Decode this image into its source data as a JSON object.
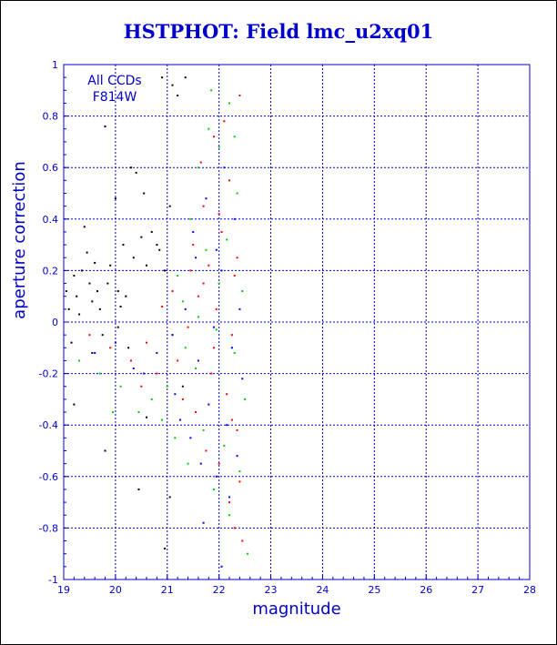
{
  "chart_data": {
    "type": "scatter",
    "title": "HSTPHOT: Field lmc_u2xq01",
    "xlabel": "magnitude",
    "ylabel": "aperture correction",
    "xlim": [
      19,
      28
    ],
    "ylim": [
      -1,
      1
    ],
    "x_ticks": [
      "19",
      "20",
      "21",
      "22",
      "23",
      "24",
      "25",
      "26",
      "27",
      "28"
    ],
    "y_ticks": [
      "1",
      "0.8",
      "0.6",
      "0.4",
      "0.2",
      "0",
      "-0.2",
      "-0.4",
      "-0.6",
      "-0.8",
      "-1"
    ],
    "grid": true,
    "annotations": [
      "All CCDs",
      "F814W"
    ],
    "colors": {
      "axis": "#0000cc",
      "grid": "#0000cc",
      "title": "#0000cc",
      "series": [
        "#000000",
        "#ff0000",
        "#00cc00",
        "#0000ff"
      ]
    },
    "series": [
      {
        "color": "#000000",
        "points": [
          [
            19.05,
            0.12
          ],
          [
            19.1,
            0.05
          ],
          [
            19.15,
            -0.08
          ],
          [
            19.2,
            0.18
          ],
          [
            19.25,
            0.1
          ],
          [
            19.3,
            0.03
          ],
          [
            19.35,
            0.2
          ],
          [
            19.4,
            0.37
          ],
          [
            19.45,
            0.27
          ],
          [
            19.5,
            0.15
          ],
          [
            19.55,
            0.08
          ],
          [
            19.6,
            0.23
          ],
          [
            19.65,
            0.12
          ],
          [
            19.7,
            0.05
          ],
          [
            19.8,
            0.76
          ],
          [
            19.85,
            0.15
          ],
          [
            19.9,
            0.22
          ],
          [
            20.0,
            0.48
          ],
          [
            20.05,
            0.12
          ],
          [
            20.1,
            0.06
          ],
          [
            20.15,
            0.3
          ],
          [
            20.2,
            0.1
          ],
          [
            20.3,
            0.6
          ],
          [
            20.35,
            0.25
          ],
          [
            20.4,
            0.58
          ],
          [
            20.5,
            0.33
          ],
          [
            20.55,
            0.5
          ],
          [
            20.6,
            0.22
          ],
          [
            20.7,
            0.35
          ],
          [
            20.8,
            0.3
          ],
          [
            20.85,
            0.28
          ],
          [
            20.9,
            0.95
          ],
          [
            20.95,
            0.2
          ],
          [
            21.05,
            0.45
          ],
          [
            21.1,
            0.92
          ],
          [
            21.2,
            0.88
          ],
          [
            21.35,
            0.95
          ],
          [
            19.2,
            -0.32
          ],
          [
            19.8,
            -0.5
          ],
          [
            20.45,
            -0.65
          ],
          [
            20.6,
            -0.37
          ],
          [
            20.95,
            -0.88
          ],
          [
            21.05,
            -0.68
          ],
          [
            21.1,
            -0.05
          ],
          [
            21.3,
            -0.25
          ],
          [
            19.55,
            -0.12
          ],
          [
            19.75,
            -0.05
          ],
          [
            20.05,
            -0.02
          ],
          [
            20.25,
            -0.1
          ]
        ]
      },
      {
        "color": "#ff0000",
        "points": [
          [
            21.9,
            0.72
          ],
          [
            22.4,
            0.88
          ],
          [
            22.1,
            0.78
          ],
          [
            21.7,
            0.45
          ],
          [
            22.2,
            0.55
          ],
          [
            21.5,
            0.3
          ],
          [
            22.05,
            0.35
          ],
          [
            21.8,
            0.22
          ],
          [
            22.3,
            0.18
          ],
          [
            21.6,
            0.1
          ],
          [
            21.95,
            0.05
          ],
          [
            22.25,
            -0.05
          ],
          [
            21.4,
            -0.02
          ],
          [
            20.9,
            0.06
          ],
          [
            20.6,
            -0.08
          ],
          [
            21.2,
            -0.15
          ],
          [
            21.85,
            -0.2
          ],
          [
            22.15,
            -0.28
          ],
          [
            21.55,
            -0.35
          ],
          [
            22.35,
            -0.42
          ],
          [
            21.75,
            -0.5
          ],
          [
            22.0,
            -0.55
          ],
          [
            22.4,
            -0.62
          ],
          [
            22.2,
            -0.7
          ],
          [
            22.3,
            -0.8
          ],
          [
            22.45,
            -0.85
          ],
          [
            19.5,
            -0.05
          ],
          [
            19.9,
            -0.1
          ],
          [
            20.3,
            -0.15
          ],
          [
            20.8,
            -0.2
          ],
          [
            21.45,
            0.2
          ],
          [
            22.0,
            0.42
          ],
          [
            21.65,
            0.62
          ],
          [
            22.35,
            0.25
          ],
          [
            21.3,
            -0.3
          ],
          [
            21.9,
            -0.1
          ],
          [
            22.25,
            -0.38
          ],
          [
            20.5,
            -0.25
          ],
          [
            21.1,
            0.12
          ],
          [
            21.7,
            0.15
          ]
        ]
      },
      {
        "color": "#00cc00",
        "points": [
          [
            21.85,
            0.9
          ],
          [
            22.2,
            0.85
          ],
          [
            22.0,
            0.68
          ],
          [
            21.6,
            0.6
          ],
          [
            22.35,
            0.5
          ],
          [
            21.45,
            0.4
          ],
          [
            22.15,
            0.32
          ],
          [
            21.75,
            0.28
          ],
          [
            22.45,
            0.12
          ],
          [
            21.3,
            0.08
          ],
          [
            21.95,
            -0.03
          ],
          [
            22.3,
            -0.12
          ],
          [
            21.55,
            -0.18
          ],
          [
            20.7,
            -0.3
          ],
          [
            20.45,
            -0.35
          ],
          [
            21.0,
            -0.25
          ],
          [
            21.7,
            -0.42
          ],
          [
            22.1,
            -0.48
          ],
          [
            21.4,
            -0.55
          ],
          [
            22.4,
            -0.58
          ],
          [
            21.9,
            -0.65
          ],
          [
            22.2,
            -0.75
          ],
          [
            22.55,
            -0.9
          ],
          [
            19.3,
            -0.15
          ],
          [
            19.7,
            -0.2
          ],
          [
            20.1,
            -0.25
          ],
          [
            20.9,
            -0.38
          ],
          [
            21.2,
            0.18
          ],
          [
            21.6,
            0.02
          ],
          [
            22.0,
            0.15
          ],
          [
            21.8,
            0.75
          ],
          [
            22.3,
            0.72
          ],
          [
            19.95,
            -0.35
          ],
          [
            21.15,
            -0.45
          ],
          [
            22.5,
            -0.3
          ],
          [
            21.35,
            -0.1
          ]
        ]
      },
      {
        "color": "#0000ff",
        "points": [
          [
            22.1,
            0.6
          ],
          [
            21.75,
            0.48
          ],
          [
            22.3,
            0.4
          ],
          [
            21.55,
            0.25
          ],
          [
            22.05,
            0.2
          ],
          [
            21.35,
            0.05
          ],
          [
            21.9,
            -0.02
          ],
          [
            22.25,
            -0.1
          ],
          [
            21.6,
            -0.15
          ],
          [
            20.8,
            -0.12
          ],
          [
            20.55,
            -0.2
          ],
          [
            21.15,
            -0.28
          ],
          [
            21.8,
            -0.32
          ],
          [
            22.15,
            -0.4
          ],
          [
            21.45,
            -0.45
          ],
          [
            22.35,
            -0.52
          ],
          [
            21.95,
            -0.6
          ],
          [
            22.2,
            -0.68
          ],
          [
            21.7,
            -0.78
          ],
          [
            22.05,
            -0.95
          ],
          [
            19.6,
            -0.12
          ],
          [
            20.0,
            -0.08
          ],
          [
            20.35,
            -0.18
          ],
          [
            21.25,
            -0.38
          ],
          [
            22.45,
            -0.22
          ],
          [
            21.5,
            0.35
          ],
          [
            21.95,
            0.28
          ],
          [
            22.4,
            0.05
          ],
          [
            21.1,
            -0.05
          ],
          [
            21.65,
            -0.55
          ]
        ]
      }
    ]
  }
}
